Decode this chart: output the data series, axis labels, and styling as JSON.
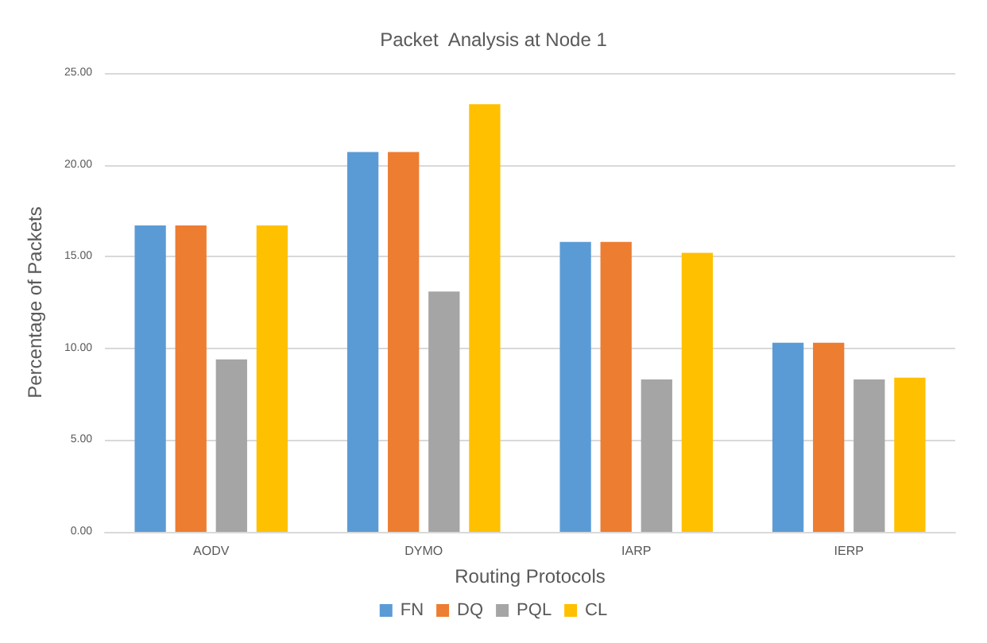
{
  "chart_data": {
    "type": "bar",
    "title": "Packet  Analysis at Node 1",
    "xlabel": "Routing Protocols",
    "ylabel": "Percentage of Packets",
    "categories": [
      "AODV",
      "DYMO",
      "IARP",
      "IERP"
    ],
    "series": [
      {
        "name": "FN",
        "color": "#5b9bd5",
        "values": [
          16.7,
          20.7,
          15.8,
          10.3
        ]
      },
      {
        "name": "DQ",
        "color": "#ed7d31",
        "values": [
          16.7,
          20.7,
          15.8,
          10.3
        ]
      },
      {
        "name": "PQL",
        "color": "#a5a5a5",
        "values": [
          9.4,
          13.1,
          8.3,
          8.3
        ]
      },
      {
        "name": "CL",
        "color": "#ffc000",
        "values": [
          16.7,
          23.3,
          15.2,
          8.4
        ]
      }
    ],
    "ylim": [
      0,
      25
    ],
    "yticks": [
      {
        "value": 0,
        "label": "0.00"
      },
      {
        "value": 5,
        "label": "5.00"
      },
      {
        "value": 10,
        "label": "10.00"
      },
      {
        "value": 15,
        "label": "15.00"
      },
      {
        "value": 20,
        "label": "20.00"
      },
      {
        "value": 25,
        "label": "25.00"
      }
    ],
    "grid": "y",
    "legend": "bottom"
  }
}
